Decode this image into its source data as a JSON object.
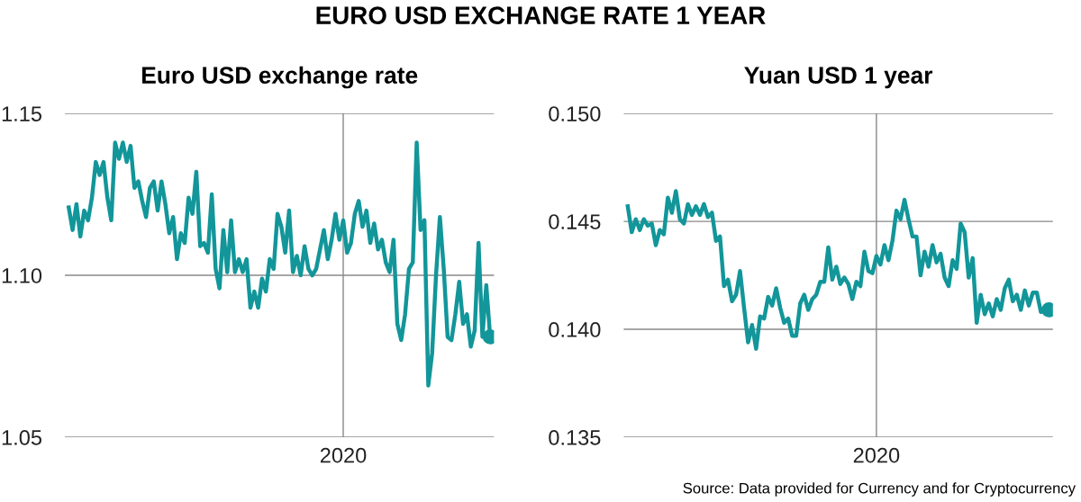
{
  "chart_data": [
    {
      "type": "line",
      "title": "Euro USD exchange rate",
      "categories": [
        null,
        null,
        null,
        null,
        null,
        null,
        null,
        null,
        null,
        null,
        null,
        null,
        null,
        null,
        null,
        null,
        null,
        null,
        null,
        null,
        null,
        null,
        null,
        null,
        null,
        null,
        null,
        null,
        null,
        null,
        null,
        null,
        null,
        null,
        null,
        null,
        null,
        null,
        null,
        null,
        null,
        null,
        null,
        null,
        null,
        null,
        null,
        null,
        null,
        null,
        null,
        null,
        null,
        null,
        null,
        null,
        null,
        null,
        null,
        null,
        null,
        null,
        null,
        null,
        null,
        null,
        null,
        null,
        null,
        null,
        null,
        "2020",
        null,
        null,
        null,
        null,
        null,
        null,
        null,
        null,
        null,
        null,
        null,
        null,
        null,
        null,
        null,
        null,
        null,
        null,
        null,
        null,
        null,
        null,
        null,
        null,
        null,
        null,
        null,
        null,
        null,
        null,
        null,
        null,
        null,
        null,
        null,
        null,
        null,
        null
      ],
      "series": [
        {
          "color": "#12969a",
          "values": [
            1.121,
            1.114,
            1.122,
            1.112,
            1.12,
            1.117,
            1.124,
            1.135,
            1.131,
            1.135,
            1.124,
            1.117,
            1.141,
            1.136,
            1.141,
            1.135,
            1.14,
            1.127,
            1.129,
            1.123,
            1.118,
            1.127,
            1.129,
            1.12,
            1.129,
            1.122,
            1.113,
            1.118,
            1.105,
            1.113,
            1.11,
            1.124,
            1.119,
            1.132,
            1.109,
            1.11,
            1.107,
            1.125,
            1.102,
            1.096,
            1.114,
            1.101,
            1.117,
            1.101,
            1.105,
            1.101,
            1.105,
            1.09,
            1.095,
            1.09,
            1.099,
            1.095,
            1.105,
            1.102,
            1.119,
            1.115,
            1.107,
            1.12,
            1.101,
            1.106,
            1.1,
            1.109,
            1.102,
            1.1,
            1.102,
            1.108,
            1.114,
            1.105,
            1.111,
            1.119,
            1.111,
            1.117,
            1.107,
            1.11,
            1.119,
            1.123,
            1.115,
            1.12,
            1.11,
            1.116,
            1.108,
            1.111,
            1.104,
            1.101,
            1.111,
            1.085,
            1.08,
            1.088,
            1.102,
            1.104,
            1.141,
            1.114,
            1.117,
            1.066,
            1.076,
            1.1,
            1.118,
            1.102,
            1.081,
            1.08,
            1.088,
            1.098,
            1.085,
            1.088,
            1.078,
            1.083,
            1.11,
            1.081,
            1.097,
            1.081
          ]
        }
      ],
      "ylim": [
        1.05,
        1.15
      ],
      "yticks": [
        {
          "value": 1.05,
          "label": "1.05"
        },
        {
          "value": 1.1,
          "label": "1.10"
        },
        {
          "value": 1.15,
          "label": "1.15"
        }
      ],
      "grid": true,
      "legend": false,
      "line_style": "solid"
    },
    {
      "type": "line",
      "title": "Yuan USD 1 year",
      "categories": [
        null,
        null,
        null,
        null,
        null,
        null,
        null,
        null,
        null,
        null,
        null,
        null,
        null,
        null,
        null,
        null,
        null,
        null,
        null,
        null,
        null,
        null,
        null,
        null,
        null,
        null,
        null,
        null,
        null,
        null,
        null,
        null,
        null,
        null,
        null,
        null,
        null,
        null,
        null,
        null,
        null,
        null,
        null,
        null,
        null,
        null,
        null,
        null,
        null,
        null,
        null,
        null,
        null,
        null,
        null,
        null,
        null,
        null,
        null,
        null,
        null,
        null,
        "2020",
        null,
        null,
        null,
        null,
        null,
        null,
        null,
        null,
        null,
        null,
        null,
        null,
        null,
        null,
        null,
        null,
        null,
        null,
        null,
        null,
        null,
        null,
        null,
        null,
        null,
        null,
        null,
        null,
        null,
        null,
        null,
        null,
        null,
        null,
        null,
        null,
        null,
        null,
        null,
        null,
        null,
        null,
        null
      ],
      "series": [
        {
          "color": "#12969a",
          "values": [
            0.1457,
            0.1445,
            0.1451,
            0.1446,
            0.1451,
            0.1448,
            0.1449,
            0.1439,
            0.1446,
            0.1444,
            0.1461,
            0.1454,
            0.1464,
            0.1451,
            0.1449,
            0.1458,
            0.1453,
            0.1457,
            0.1453,
            0.1458,
            0.1452,
            0.1454,
            0.1441,
            0.1443,
            0.142,
            0.1423,
            0.1413,
            0.1416,
            0.1427,
            0.141,
            0.1394,
            0.1402,
            0.1391,
            0.1406,
            0.1405,
            0.1415,
            0.1411,
            0.1419,
            0.141,
            0.1403,
            0.1405,
            0.1397,
            0.1397,
            0.1412,
            0.1416,
            0.1409,
            0.1414,
            0.1416,
            0.1422,
            0.1422,
            0.1438,
            0.1423,
            0.1429,
            0.1421,
            0.1424,
            0.1421,
            0.1414,
            0.1422,
            0.142,
            0.1436,
            0.1427,
            0.1426,
            0.1434,
            0.143,
            0.1439,
            0.1432,
            0.1441,
            0.1455,
            0.1451,
            0.146,
            0.1451,
            0.1443,
            0.1443,
            0.1425,
            0.1436,
            0.1429,
            0.1439,
            0.1431,
            0.1435,
            0.1424,
            0.142,
            0.1432,
            0.1428,
            0.1449,
            0.1445,
            0.1424,
            0.1433,
            0.1403,
            0.1416,
            0.1407,
            0.1412,
            0.1406,
            0.1414,
            0.1409,
            0.1419,
            0.1423,
            0.1413,
            0.1416,
            0.1409,
            0.1418,
            0.1411,
            0.1417,
            0.1417,
            0.1408,
            0.141,
            0.1409
          ]
        }
      ],
      "ylim": [
        0.135,
        0.15
      ],
      "yticks": [
        {
          "value": 0.135,
          "label": "0.135"
        },
        {
          "value": 0.14,
          "label": "0.140"
        },
        {
          "value": 0.145,
          "label": "0.145"
        },
        {
          "value": 0.15,
          "label": "0.150"
        }
      ],
      "grid": true,
      "legend": false,
      "line_style": "solid",
      "annotations": [
        "EURO USD EXCHANGE RATE 1 YEAR",
        "Source: Data provided for Currency and for Cryptocurrency"
      ]
    }
  ]
}
